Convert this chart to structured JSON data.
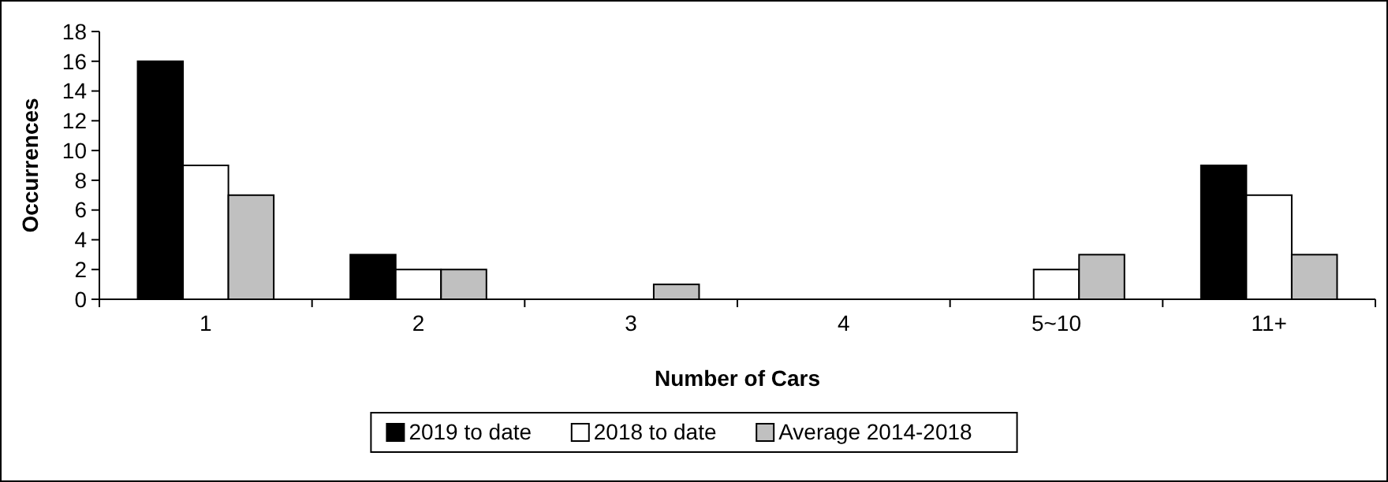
{
  "chart_data": {
    "type": "bar",
    "xlabel": "Number of Cars",
    "ylabel": "Occurrences",
    "categories": [
      "1",
      "2",
      "3",
      "4",
      "5~10",
      "11+"
    ],
    "series": [
      {
        "name": "2019 to date",
        "color": "#000000",
        "values": [
          16,
          3,
          0,
          0,
          0,
          9
        ]
      },
      {
        "name": "2018 to date",
        "color": "#ffffff",
        "values": [
          9,
          2,
          0,
          0,
          2,
          7
        ]
      },
      {
        "name": "Average 2014-2018",
        "color": "#c0c0c0",
        "values": [
          7,
          2,
          1,
          0,
          3,
          3
        ]
      }
    ],
    "ylim": [
      0,
      18
    ],
    "yticks": [
      0,
      2,
      4,
      6,
      8,
      10,
      12,
      14,
      16,
      18
    ],
    "grid": false,
    "legend": "bottom"
  }
}
